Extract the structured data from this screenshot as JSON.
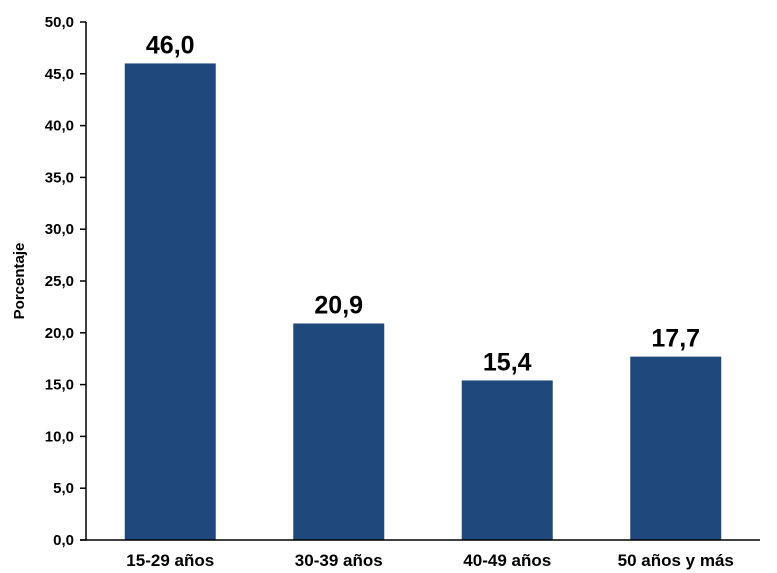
{
  "chart_data": {
    "type": "bar",
    "categories": [
      "15-29 años",
      "30-39 años",
      "40-49 años",
      "50 años y más"
    ],
    "values": [
      46.0,
      20.9,
      15.4,
      17.7
    ],
    "data_labels": [
      "46,0",
      "20,9",
      "15,4",
      "17,7"
    ],
    "title": "",
    "xlabel": "",
    "ylabel": "Porcentaje",
    "ylim": [
      0,
      50
    ],
    "yticks": [
      0,
      5,
      10,
      15,
      20,
      25,
      30,
      35,
      40,
      45,
      50
    ],
    "ytick_labels": [
      "0,0",
      "5,0",
      "10,0",
      "15,0",
      "20,0",
      "25,0",
      "30,0",
      "35,0",
      "40,0",
      "45,0",
      "50,0"
    ],
    "bar_color": "#1F497D",
    "grid": false,
    "legend": "none"
  }
}
